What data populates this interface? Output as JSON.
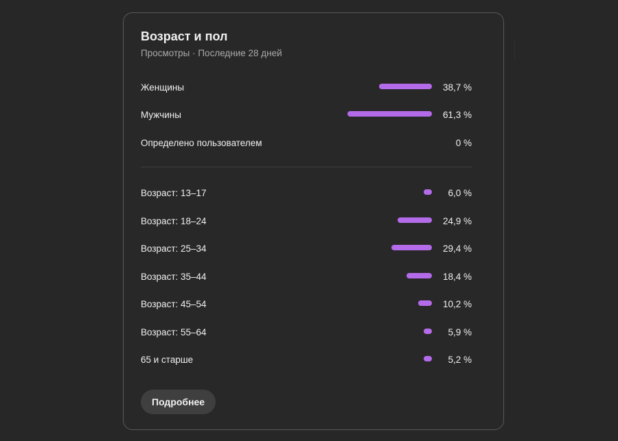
{
  "card": {
    "title": "Возраст и пол",
    "subtitle": "Просмотры · Последние 28 дней",
    "more_button": "Подробнее",
    "bar_color": "#b46be9"
  },
  "gender": [
    {
      "label": "Женщины",
      "value": "38,7 %",
      "percent": 38.7
    },
    {
      "label": "Мужчины",
      "value": "61,3 %",
      "percent": 61.3
    },
    {
      "label": "Определено пользователем",
      "value": "0 %",
      "percent": 0
    }
  ],
  "age": [
    {
      "label": "Возраст: 13–17",
      "value": "6,0 %",
      "percent": 6.0
    },
    {
      "label": "Возраст: 18–24",
      "value": "24,9 %",
      "percent": 24.9
    },
    {
      "label": "Возраст: 25–34",
      "value": "29,4 %",
      "percent": 29.4
    },
    {
      "label": "Возраст: 35–44",
      "value": "18,4 %",
      "percent": 18.4
    },
    {
      "label": "Возраст: 45–54",
      "value": "10,2 %",
      "percent": 10.2
    },
    {
      "label": "Возраст: 55–64",
      "value": "5,9 %",
      "percent": 5.9
    },
    {
      "label": "65 и старше",
      "value": "5,2 %",
      "percent": 5.2
    }
  ]
}
